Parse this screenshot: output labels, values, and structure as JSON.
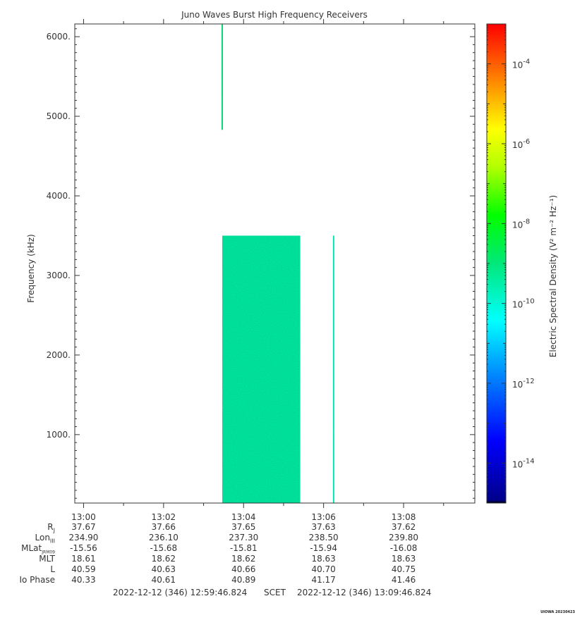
{
  "chart_data": {
    "type": "heatmap",
    "title": "Juno Waves Burst High Frequency Receivers",
    "ylabel": "Frequency (kHz)",
    "ylim": [
      140,
      6160
    ],
    "y_ticks": [
      {
        "value": 1000,
        "label": "1000."
      },
      {
        "value": 2000,
        "label": "2000."
      },
      {
        "value": 3000,
        "label": "3000."
      },
      {
        "value": 4000,
        "label": "4000."
      },
      {
        "value": 5000,
        "label": "5000."
      },
      {
        "value": 6000,
        "label": "6000."
      }
    ],
    "x_time_range_seconds_after_1300": [
      -13.176,
      586.824
    ],
    "x_ticks": [
      {
        "label": "13:00",
        "sec": 0
      },
      {
        "label": "13:02",
        "sec": 120
      },
      {
        "label": "13:04",
        "sec": 240
      },
      {
        "label": "13:06",
        "sec": 360
      },
      {
        "label": "13:08",
        "sec": 480
      }
    ],
    "blocks": [
      {
        "t_start_sec": 208,
        "t_end_sec": 325,
        "f_min": 140,
        "f_max": 3500,
        "log10_density": -9.5
      },
      {
        "t_start_sec": 207,
        "t_end_sec": 209,
        "f_min": 4830,
        "f_max": 6160,
        "log10_density": -9.0
      },
      {
        "t_start_sec": 374,
        "t_end_sec": 376,
        "f_min": 140,
        "f_max": 3500,
        "log10_density": -9.8
      }
    ],
    "colorbar": {
      "label": "Electric Spectral Density (V² m⁻² Hz⁻¹)",
      "log10_min": -15,
      "log10_max": -3,
      "tick_labels": [
        {
          "exp": -14,
          "label": "-14"
        },
        {
          "exp": -12,
          "label": "-12"
        },
        {
          "exp": -10,
          "label": "-10"
        },
        {
          "exp": -8,
          "label": "-8"
        },
        {
          "exp": -6,
          "label": "-6"
        },
        {
          "exp": -4,
          "label": "-4"
        }
      ]
    },
    "ephemeris": {
      "labels": [
        "R",
        "Lon",
        "MLat",
        "MLT",
        "L",
        "Io Phase"
      ],
      "label_subscripts": [
        "J",
        "III",
        "JRM09",
        "",
        "",
        ""
      ],
      "columns": [
        [
          "37.67",
          "234.90",
          "-15.56",
          "18.61",
          "40.59",
          "40.33"
        ],
        [
          "37.66",
          "236.10",
          "-15.68",
          "18.62",
          "40.63",
          "40.61"
        ],
        [
          "37.65",
          "237.30",
          "-15.81",
          "18.62",
          "40.66",
          "40.89"
        ],
        [
          "37.63",
          "238.50",
          "-15.94",
          "18.63",
          "40.70",
          "41.17"
        ],
        [
          "37.62",
          "239.80",
          "-16.08",
          "18.63",
          "40.75",
          "41.46"
        ]
      ]
    },
    "footer": {
      "start": "2022-12-12 (346) 12:59:46.824",
      "scet": "SCET",
      "end": "2022-12-12 (346) 13:09:46.824"
    },
    "version_stamp": "UIOWA 20230423",
    "colors": {
      "axis": "#333333",
      "background": "#ffffff"
    }
  }
}
